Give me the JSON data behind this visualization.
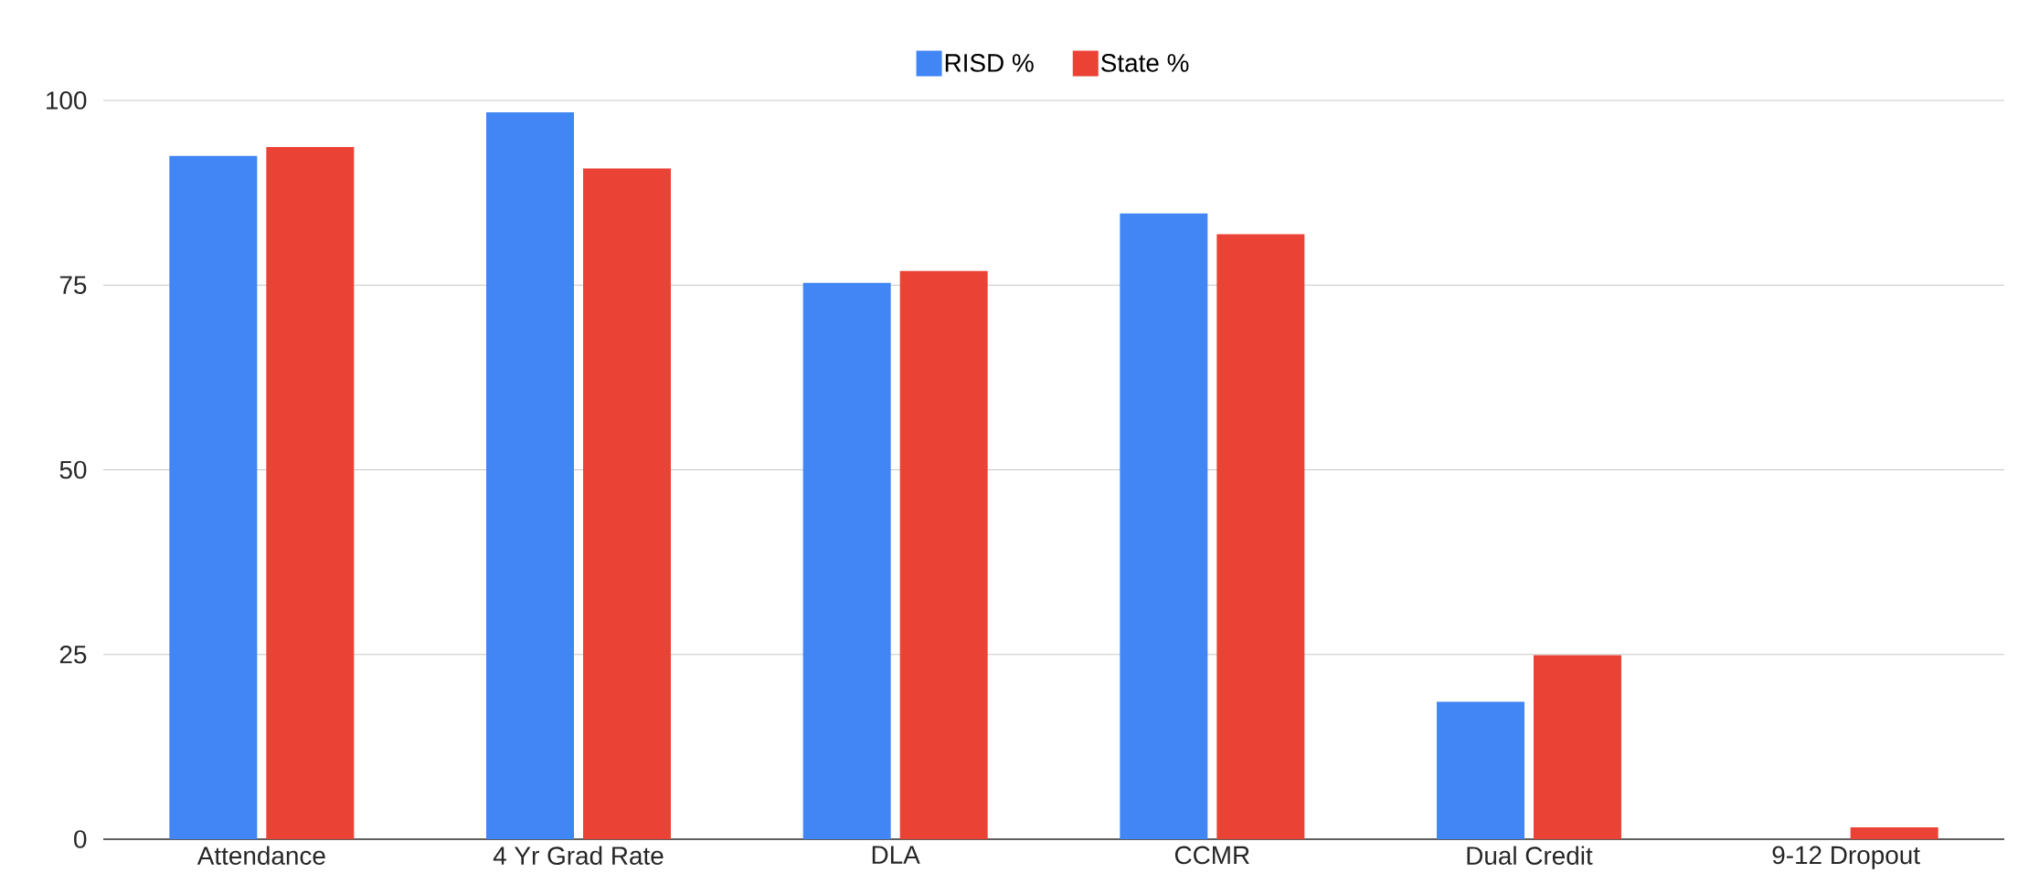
{
  "chart_data": {
    "type": "bar",
    "categories": [
      "Attendance",
      "4 Yr Grad Rate",
      "DLA",
      "CCMR",
      "Dual Credit",
      "9-12 Dropout"
    ],
    "series": [
      {
        "name": "RISD %",
        "color": "#4285f4",
        "values": [
          92.5,
          98.4,
          75.3,
          84.7,
          18.6,
          0
        ]
      },
      {
        "name": "State %",
        "color": "#ea4335",
        "values": [
          93.7,
          90.8,
          76.9,
          81.9,
          24.9,
          1.6
        ]
      }
    ],
    "ylim": [
      0,
      100
    ],
    "yticks": [
      0,
      25,
      50,
      75,
      100
    ],
    "grid": "y",
    "legend": "top"
  }
}
